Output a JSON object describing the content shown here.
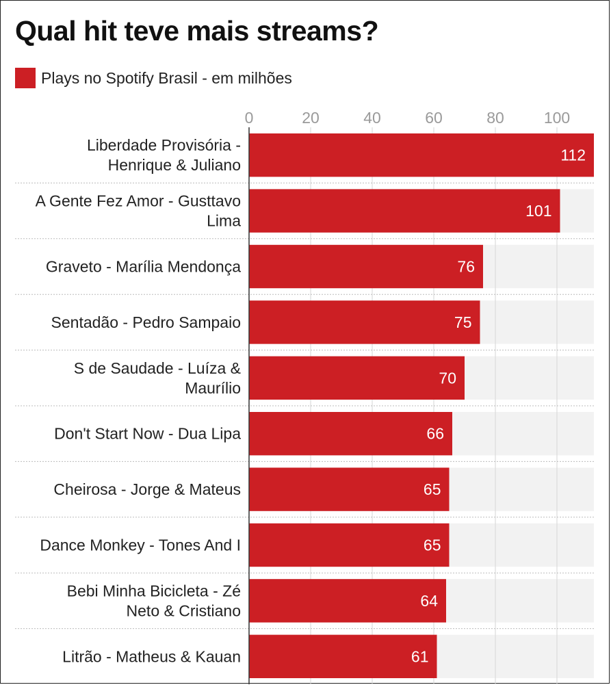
{
  "title": "Qual hit teve mais streams?",
  "legend": {
    "label": "Plays no Spotify Brasil - em milhões",
    "color": "#cc1f24"
  },
  "chart_data": {
    "type": "bar",
    "orientation": "horizontal",
    "title": "Qual hit teve mais streams?",
    "xlabel": "",
    "ylabel": "",
    "xlim": [
      0,
      112
    ],
    "xticks": [
      0,
      20,
      40,
      60,
      80,
      100
    ],
    "grid": true,
    "legend_position": "top-left",
    "colors": {
      "bar": "#cc1f24",
      "track": "#f2f2f2",
      "grid": "#d6d6d6",
      "tick_text": "#9a9a9a",
      "value_text": "#ffffff"
    },
    "categories": [
      [
        "Liberdade Provisória -",
        "Henrique & Juliano"
      ],
      [
        "A Gente Fez Amor - Gusttavo",
        "Lima"
      ],
      [
        "Graveto - Marília Mendonça"
      ],
      [
        "Sentadão - Pedro Sampaio"
      ],
      [
        "S de Saudade - Luíza &",
        "Maurílio"
      ],
      [
        "Don't Start Now - Dua Lipa"
      ],
      [
        "Cheirosa - Jorge & Mateus"
      ],
      [
        "Dance Monkey - Tones And I"
      ],
      [
        "Bebi Minha Bicicleta - Zé",
        "Neto & Cristiano"
      ],
      [
        "Litrão - Matheus & Kauan"
      ]
    ],
    "series": [
      {
        "name": "Plays no Spotify Brasil - em milhões",
        "values": [
          112,
          101,
          76,
          75,
          70,
          66,
          65,
          65,
          64,
          61
        ]
      }
    ]
  }
}
